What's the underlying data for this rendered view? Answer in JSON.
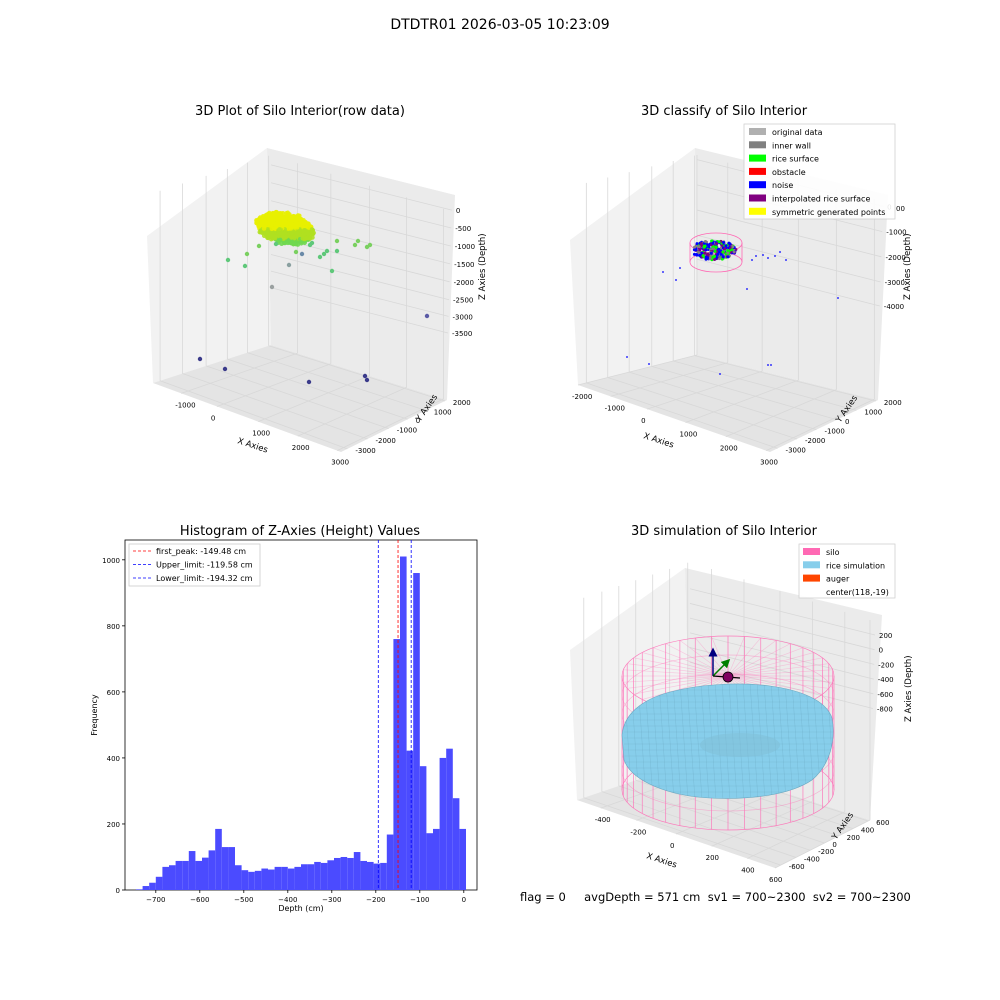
{
  "page_title": "DTDTR01 2026-03-05 10:23:09",
  "status_line": "flag = 0     avgDepth = 571 cm  sv1 = 700~2300  sv2 = 700~2300",
  "colors": {
    "original_data": "#b0b0b0",
    "inner_wall": "#808080",
    "rice_surface": "#00ff00",
    "obstacle": "#ff0000",
    "noise": "#0000ff",
    "interpolated_rice_surface": "#800080",
    "symmetric_generated_points": "#ffff00",
    "silo": "#ff69b4",
    "rice_simulation": "#87ceeb",
    "auger": "#ff4500",
    "histogram": "#4b4bff"
  },
  "chart_data": [
    {
      "type": "scatter",
      "title": "3D Plot of Silo Interior(row data)",
      "xlabel": "X Axies",
      "ylabel": "Y Axies",
      "zlabel": "Z Axies (Depth)",
      "x_ticks": [
        "-1000",
        "0",
        "1000",
        "2000",
        "3000"
      ],
      "y_ticks": [
        "-3000",
        "-2000",
        "-1000",
        "0",
        "1000",
        "2000"
      ],
      "z_ticks": [
        "0",
        "-500",
        "-1000",
        "-1500",
        "-2000",
        "-2500",
        "-3000",
        "-3500"
      ]
    },
    {
      "type": "scatter",
      "title": "3D classify of Silo Interior",
      "xlabel": "X Axies",
      "ylabel": "Y Axies",
      "zlabel": "Z Axies (Depth)",
      "x_ticks": [
        "-2000",
        "-1000",
        "0",
        "1000",
        "2000",
        "3000"
      ],
      "y_ticks": [
        "-3000",
        "-2000",
        "-1000",
        "0",
        "1000",
        "2000"
      ],
      "z_ticks": [
        "0",
        "-1000",
        "-2000",
        "-3000",
        "-4000"
      ],
      "z_top_tick_partial": "00",
      "legend": [
        "original data",
        "inner wall",
        "rice surface",
        "obstacle",
        "noise",
        "interpolated rice surface",
        "symmetric generated points"
      ]
    },
    {
      "type": "bar",
      "title": "Histogram of Z-Axies (Height) Values",
      "xlabel": "Depth (cm)",
      "ylabel": "Frequency",
      "xlim": [
        -770,
        30
      ],
      "ylim": [
        0,
        1060
      ],
      "x_ticks": [
        -700,
        -600,
        -500,
        -400,
        -300,
        -200,
        -100,
        0
      ],
      "x_tick_labels": [
        "−700",
        "−600",
        "−500",
        "−400",
        "−300",
        "−200",
        "−100",
        "0"
      ],
      "y_ticks": [
        0,
        200,
        400,
        600,
        800,
        1000
      ],
      "bin_start": -745,
      "bin_width": 15,
      "values": [
        2,
        12,
        22,
        40,
        70,
        75,
        88,
        88,
        118,
        88,
        98,
        120,
        185,
        130,
        130,
        75,
        60,
        55,
        58,
        65,
        62,
        70,
        70,
        65,
        70,
        78,
        78,
        85,
        82,
        90,
        97,
        100,
        97,
        115,
        88,
        85,
        80,
        82,
        168,
        760,
        1010,
        422,
        960,
        375,
        172,
        185,
        400,
        428,
        278,
        185
      ],
      "legend": [
        {
          "label": "first_peak: -149.48 cm",
          "x": -149.48,
          "color": "#ff0000"
        },
        {
          "label": "Upper_limit: -119.58 cm",
          "x": -119.58,
          "color": "#0000ff"
        },
        {
          "label": "Lower_limit: -194.32 cm",
          "x": -194.32,
          "color": "#0000ff"
        }
      ]
    },
    {
      "type": "scatter",
      "title": "3D simulation of Silo Interior",
      "xlabel": "X Axies",
      "ylabel": "Y Axies",
      "zlabel": "Z Axies (Depth)",
      "x_ticks": [
        "-400",
        "-200",
        "0",
        "200",
        "400",
        "600"
      ],
      "y_ticks": [
        "-600",
        "-400",
        "-200",
        "0",
        "200",
        "400",
        "600"
      ],
      "z_ticks": [
        "200",
        "0",
        "-200",
        "-400",
        "-600",
        "-800"
      ],
      "legend": [
        "silo",
        "rice simulation",
        "auger",
        "center(118,-19)"
      ]
    }
  ]
}
